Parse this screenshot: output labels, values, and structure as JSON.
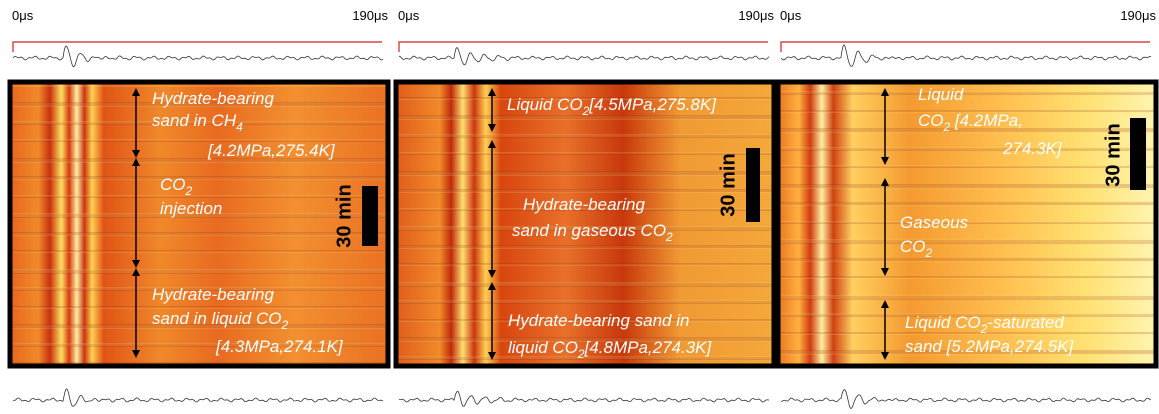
{
  "panels": [
    {
      "time_start": "0μs",
      "time_end": "190μs",
      "scale_label": "30 min",
      "annotations": [
        {
          "lines": [
            [
              "Hydrate-bearing"
            ],
            [
              "sand in CH",
              "4"
            ],
            [
              "[4.2MPa,275.4K]"
            ]
          ]
        },
        {
          "lines": [
            [
              "CO",
              "2"
            ],
            [
              "injection"
            ]
          ]
        },
        {
          "lines": [
            [
              "Hydrate-bearing"
            ],
            [
              "sand in liquid CO",
              "2"
            ],
            [
              "[4.3MPa,274.1K]"
            ]
          ]
        }
      ]
    },
    {
      "time_start": "0μs",
      "time_end": "190μs",
      "scale_label": "30 min",
      "annotations": [
        {
          "lines": [
            [
              "Liquid CO",
              "2",
              "[4.5MPa,275.8K]"
            ]
          ]
        },
        {
          "lines": [
            [
              "Hydrate-bearing"
            ],
            [
              "sand in gaseous CO",
              "2"
            ]
          ]
        },
        {
          "lines": [
            [
              "Hydrate-bearing sand in"
            ],
            [
              "liquid CO",
              "2",
              "[4.8MPa,274.3K]"
            ]
          ]
        }
      ]
    },
    {
      "time_start": "0μs",
      "time_end": "190μs",
      "scale_label": "30 min",
      "annotations": [
        {
          "lines": [
            [
              "Liquid"
            ],
            [
              "CO",
              "2",
              " [4.2MPa,"
            ],
            [
              "274.3K]"
            ]
          ]
        },
        {
          "lines": [
            [
              "Gaseous"
            ],
            [
              "CO",
              "2"
            ]
          ]
        },
        {
          "lines": [
            [
              "Liquid CO",
              "2",
              "-saturated"
            ],
            [
              "sand [5.2MPa,274.5K]"
            ]
          ]
        }
      ]
    }
  ]
}
